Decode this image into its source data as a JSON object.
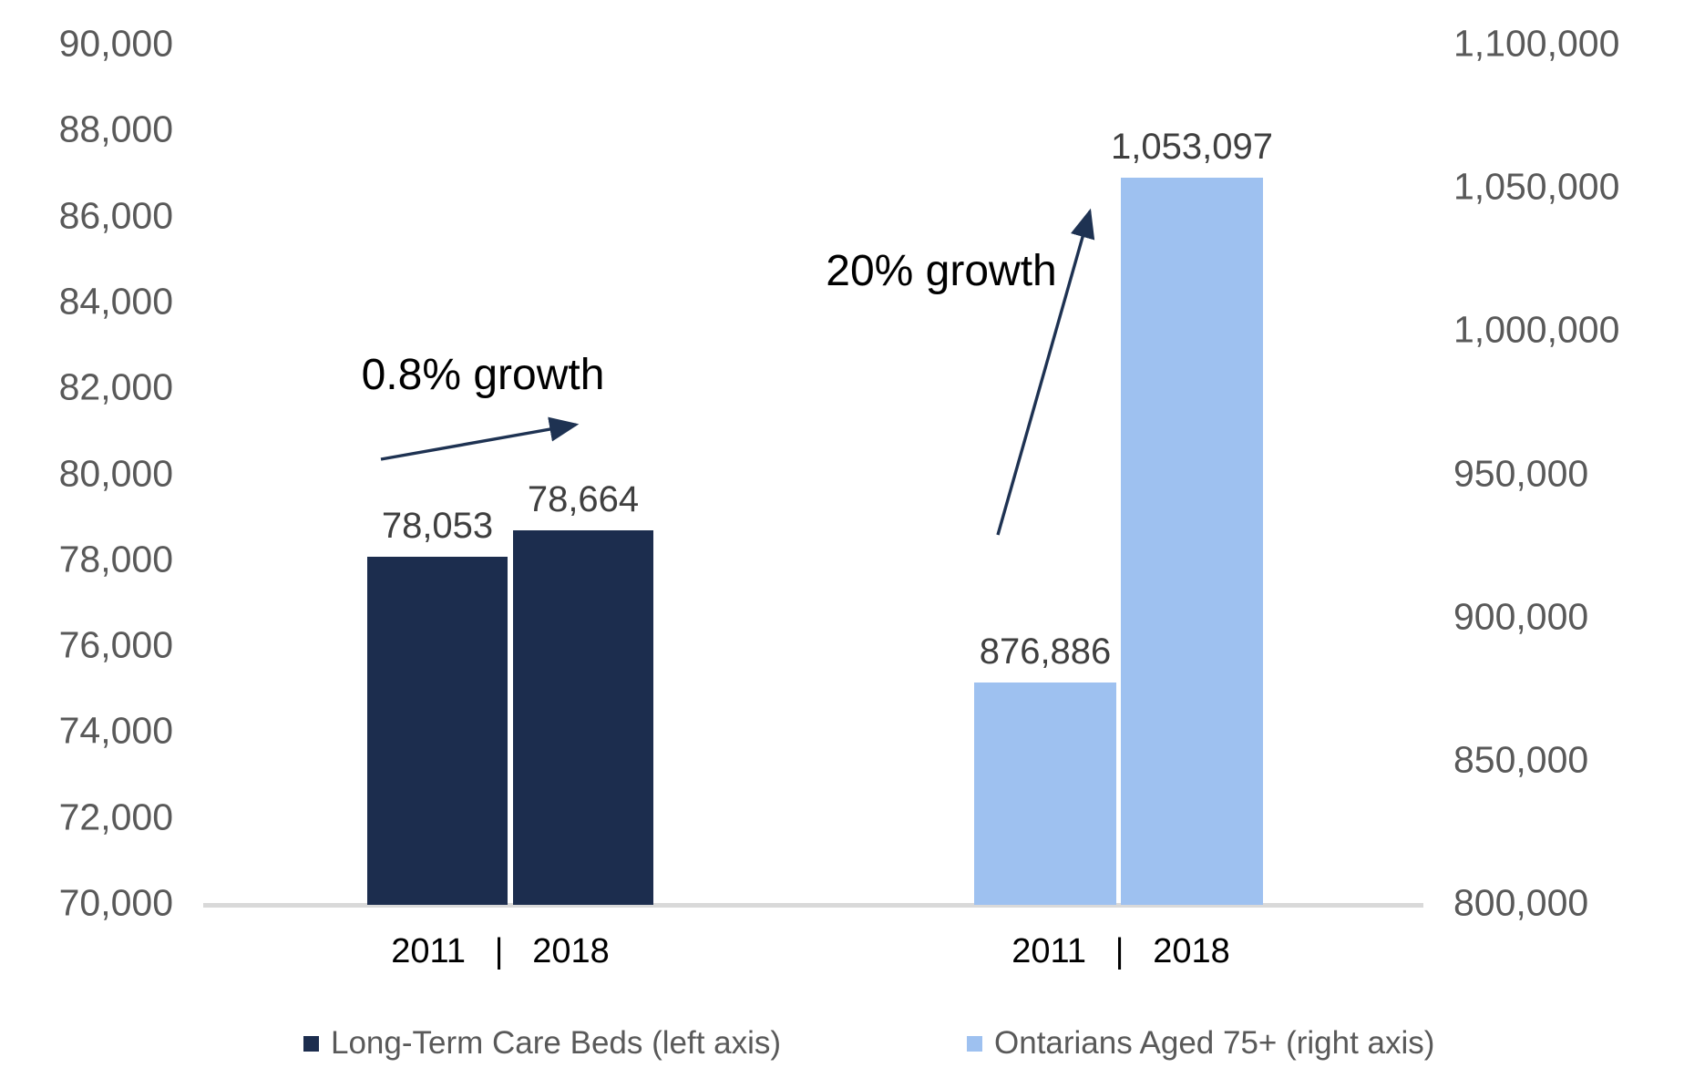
{
  "chart_data": {
    "type": "bar",
    "title": "",
    "dual_axis": true,
    "grid": false,
    "legend_position": "bottom",
    "groups": [
      {
        "name": "Long-Term Care Beds",
        "axis": "left",
        "categories": [
          "2011",
          "2018"
        ],
        "values": [
          78053,
          78664
        ],
        "value_labels": [
          "78,053",
          "78,664"
        ],
        "annotation": "0.8% growth",
        "color": "#1C2D4E"
      },
      {
        "name": "Ontarians Aged 75+",
        "axis": "right",
        "categories": [
          "2011",
          "2018"
        ],
        "values": [
          876886,
          1053097
        ],
        "value_labels": [
          "876,886",
          "1,053,097"
        ],
        "annotation": "20% growth",
        "color": "#9EC1F0"
      }
    ],
    "left_axis": {
      "min": 70000,
      "max": 90000,
      "step": 2000,
      "tick_labels": [
        "90,000",
        "88,000",
        "86,000",
        "84,000",
        "82,000",
        "80,000",
        "78,000",
        "76,000",
        "74,000",
        "72,000",
        "70,000"
      ]
    },
    "right_axis": {
      "min": 800000,
      "max": 1100000,
      "step": 50000,
      "tick_labels": [
        "1,100,000",
        "1,050,000",
        "1,000,000",
        "950,000",
        "900,000",
        "850,000",
        "800,000"
      ]
    },
    "x_group_labels": [
      "2011   |   2018",
      "2011   |   2018"
    ],
    "legend": [
      {
        "label": "Long-Term Care Beds (left axis)",
        "color": "#1C2D4E"
      },
      {
        "label": "Ontarians Aged 75+ (right axis)",
        "color": "#9EC1F0"
      }
    ]
  },
  "colors": {
    "dark_bar": "#1C2D4E",
    "light_bar": "#9EC1F0",
    "axis_text": "#595959",
    "value_label_text": "#3F3F3F",
    "year_label_text": "#000000",
    "annotation_text": "#000000",
    "arrow": "#1E3252",
    "axis_line": "#D9D9D9",
    "background": "#FFFFFF"
  }
}
